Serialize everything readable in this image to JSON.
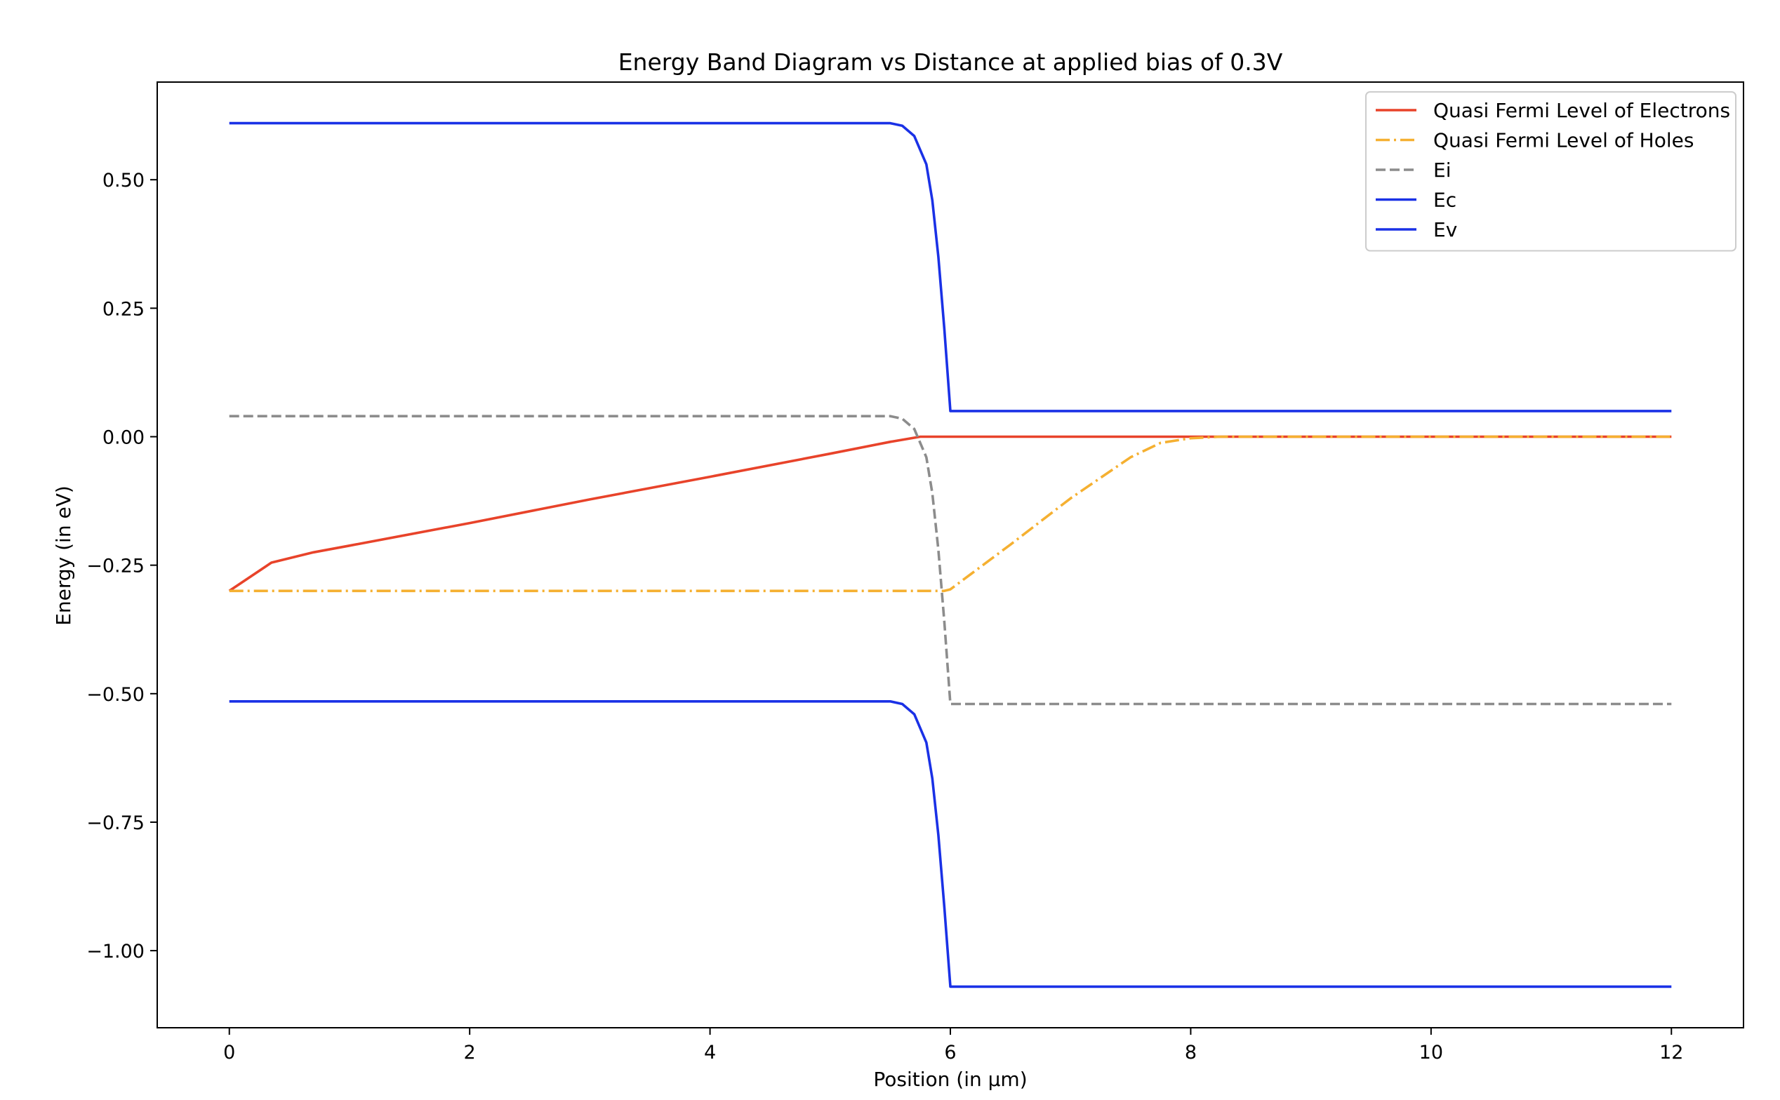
{
  "chart_data": {
    "type": "line",
    "title": "Energy Band Diagram vs Distance at applied bias of 0.3V",
    "xlabel": "Position (in μm)",
    "ylabel": "Energy (in eV)",
    "xlim": [
      -0.6,
      12.6
    ],
    "ylim": [
      -1.15,
      0.69
    ],
    "xticks": [
      0,
      2,
      4,
      6,
      8,
      10,
      12
    ],
    "xtick_labels": [
      "0",
      "2",
      "4",
      "6",
      "8",
      "10",
      "12"
    ],
    "yticks": [
      0.5,
      0.25,
      0.0,
      -0.25,
      -0.5,
      -0.75,
      -1.0
    ],
    "ytick_labels": [
      "0.50",
      "0.25",
      "0.00",
      "−0.25",
      "−0.50",
      "−0.75",
      "−1.00"
    ],
    "grid": false,
    "legend_position": "top-right",
    "series": [
      {
        "name": "Quasi Fermi Level of Electrons",
        "color": "#e8432a",
        "style": "solid",
        "x": [
          0,
          0.35,
          0.7,
          1.0,
          2.0,
          3.0,
          4.0,
          5.0,
          5.5,
          5.75,
          6.0,
          7.0,
          8.0,
          9.0,
          10.0,
          11.0,
          12.0
        ],
        "y": [
          -0.3,
          -0.245,
          -0.225,
          -0.212,
          -0.168,
          -0.122,
          -0.078,
          -0.033,
          -0.01,
          0.0,
          0.0,
          0.0,
          0.0,
          0.0,
          0.0,
          0.0,
          0.0
        ]
      },
      {
        "name": "Quasi Fermi Level of Holes",
        "color": "#f5b031",
        "style": "dashdot",
        "x": [
          0,
          1,
          2,
          3,
          4,
          5,
          5.95,
          6.0,
          6.5,
          7.0,
          7.5,
          7.75,
          8.0,
          8.25,
          9.0,
          10.0,
          11.0,
          12.0
        ],
        "y": [
          -0.3,
          -0.3,
          -0.3,
          -0.3,
          -0.3,
          -0.3,
          -0.3,
          -0.297,
          -0.21,
          -0.12,
          -0.04,
          -0.012,
          -0.003,
          0.0,
          0.0,
          0.0,
          0.0,
          0.0
        ]
      },
      {
        "name": "Ei",
        "color": "#8c8c8c",
        "style": "dashed",
        "x": [
          0,
          2,
          4,
          5.5,
          5.6,
          5.7,
          5.8,
          5.85,
          5.9,
          5.95,
          6.0,
          7.0,
          8.0,
          10.0,
          12.0
        ],
        "y": [
          0.04,
          0.04,
          0.04,
          0.04,
          0.035,
          0.015,
          -0.04,
          -0.11,
          -0.22,
          -0.36,
          -0.52,
          -0.52,
          -0.52,
          -0.52,
          -0.52
        ]
      },
      {
        "name": "Ec",
        "color": "#1a31e6",
        "style": "solid",
        "x": [
          0,
          2,
          4,
          5.5,
          5.6,
          5.7,
          5.8,
          5.85,
          5.9,
          5.95,
          6.0,
          7.0,
          8.0,
          10.0,
          12.0
        ],
        "y": [
          0.61,
          0.61,
          0.61,
          0.61,
          0.605,
          0.585,
          0.53,
          0.46,
          0.35,
          0.21,
          0.05,
          0.05,
          0.05,
          0.05,
          0.05
        ]
      },
      {
        "name": "Ev",
        "color": "#1a31e6",
        "style": "solid",
        "x": [
          0,
          2,
          4,
          5.5,
          5.6,
          5.7,
          5.8,
          5.85,
          5.9,
          5.95,
          6.0,
          7.0,
          8.0,
          10.0,
          12.0
        ],
        "y": [
          -0.515,
          -0.515,
          -0.515,
          -0.515,
          -0.52,
          -0.54,
          -0.595,
          -0.665,
          -0.775,
          -0.915,
          -1.07,
          -1.07,
          -1.07,
          -1.07,
          -1.07
        ]
      }
    ]
  }
}
